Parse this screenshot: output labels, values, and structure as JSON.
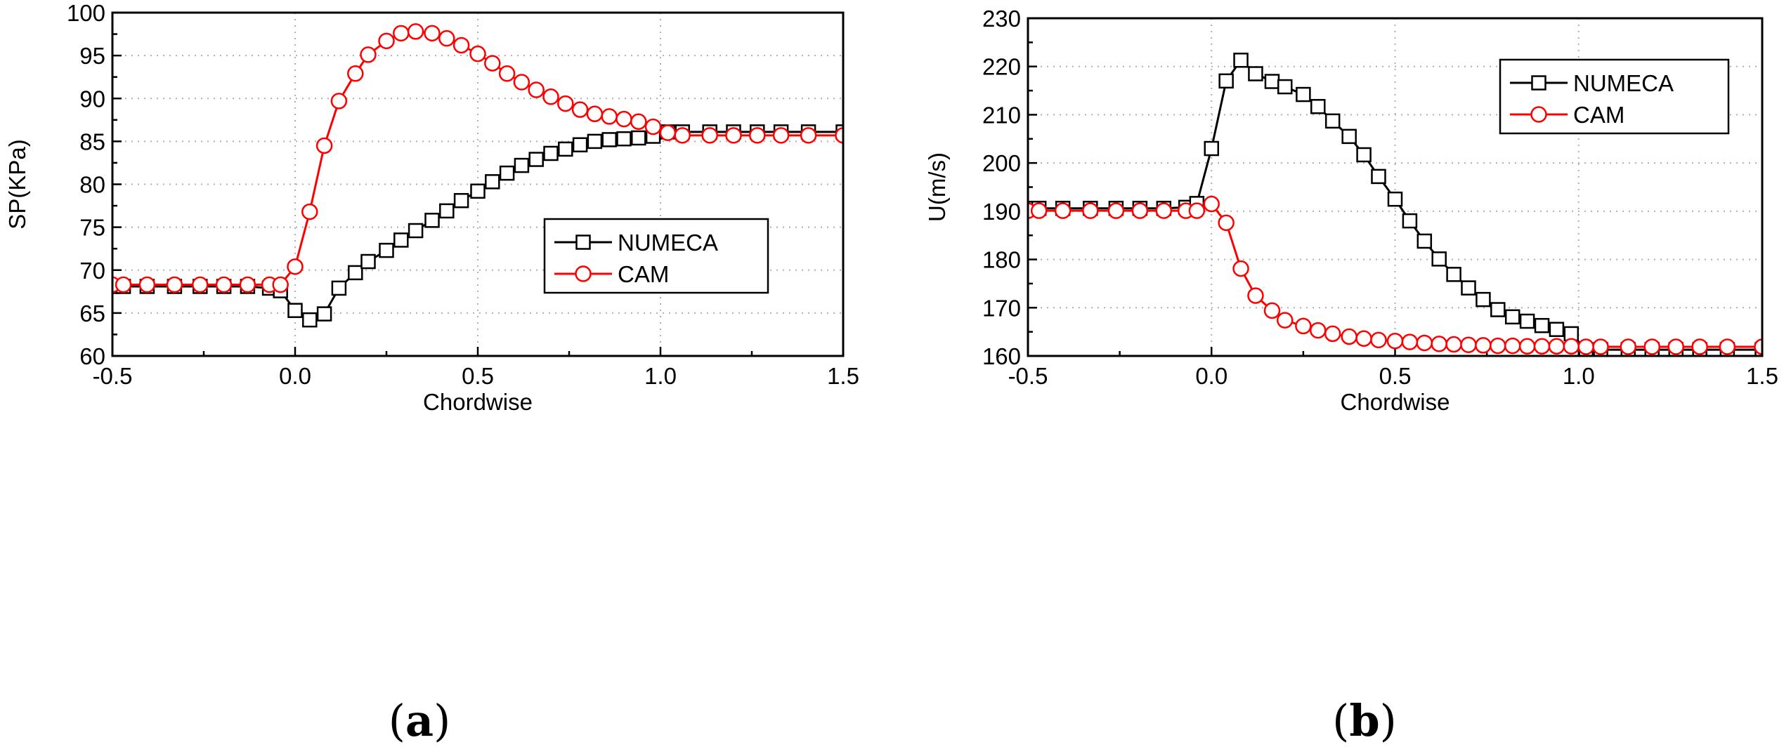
{
  "chart_data": [
    {
      "panel_label": "(a)",
      "type": "line",
      "title": "",
      "xlabel": "Chordwise",
      "ylabel": "SP(KPa)",
      "xlim": [
        -0.5,
        1.5
      ],
      "ylim": [
        60,
        100
      ],
      "xticks": [
        -0.5,
        0.0,
        0.5,
        1.0,
        1.5
      ],
      "xtick_labels": [
        "-0.5",
        "0.0",
        "0.5",
        "1.0",
        "1.5"
      ],
      "yticks": [
        60,
        65,
        70,
        75,
        80,
        85,
        90,
        95,
        100
      ],
      "ytick_labels": [
        "60",
        "65",
        "70",
        "75",
        "80",
        "85",
        "90",
        "95",
        "100"
      ],
      "grid": true,
      "legend_position": "middle-right",
      "series": [
        {
          "name": "NUMECA",
          "color": "#000000",
          "marker": "square",
          "x": [
            -0.5,
            -0.47,
            -0.405,
            -0.33,
            -0.26,
            -0.195,
            -0.13,
            -0.07,
            -0.04,
            0.0,
            0.04,
            0.08,
            0.12,
            0.165,
            0.2,
            0.25,
            0.29,
            0.33,
            0.375,
            0.415,
            0.455,
            0.5,
            0.54,
            0.58,
            0.62,
            0.66,
            0.7,
            0.74,
            0.78,
            0.82,
            0.86,
            0.9,
            0.94,
            0.98,
            1.02,
            1.06,
            1.135,
            1.2,
            1.265,
            1.33,
            1.405,
            1.5
          ],
          "y": [
            68.1,
            68.1,
            68.1,
            68.1,
            68.1,
            68.1,
            68.1,
            67.9,
            67.6,
            65.3,
            64.2,
            64.9,
            67.9,
            69.7,
            71.0,
            72.3,
            73.5,
            74.6,
            75.8,
            76.9,
            78.1,
            79.2,
            80.3,
            81.3,
            82.2,
            82.9,
            83.6,
            84.1,
            84.6,
            85.0,
            85.2,
            85.3,
            85.4,
            85.6,
            86.1,
            86.1,
            86.1,
            86.1,
            86.1,
            86.1,
            86.1,
            86.1
          ]
        },
        {
          "name": "CAM",
          "color": "#ff0000",
          "marker": "circle",
          "x": [
            -0.5,
            -0.47,
            -0.405,
            -0.33,
            -0.26,
            -0.195,
            -0.13,
            -0.07,
            -0.04,
            0.0,
            0.04,
            0.08,
            0.12,
            0.165,
            0.2,
            0.25,
            0.29,
            0.33,
            0.375,
            0.415,
            0.455,
            0.5,
            0.54,
            0.58,
            0.62,
            0.66,
            0.7,
            0.74,
            0.78,
            0.82,
            0.86,
            0.9,
            0.94,
            0.98,
            1.02,
            1.06,
            1.135,
            1.2,
            1.265,
            1.33,
            1.405,
            1.5
          ],
          "y": [
            68.3,
            68.3,
            68.3,
            68.3,
            68.3,
            68.3,
            68.3,
            68.3,
            68.3,
            70.4,
            76.8,
            84.5,
            89.7,
            92.9,
            95.1,
            96.7,
            97.6,
            97.8,
            97.6,
            97.0,
            96.2,
            95.2,
            94.1,
            92.9,
            91.9,
            91.0,
            90.2,
            89.4,
            88.7,
            88.2,
            87.9,
            87.6,
            87.3,
            86.7,
            86.0,
            85.7,
            85.7,
            85.7,
            85.7,
            85.7,
            85.7,
            85.7
          ]
        }
      ]
    },
    {
      "panel_label": "(b)",
      "type": "line",
      "title": "",
      "xlabel": "Chordwise",
      "ylabel": "U(m/s)",
      "xlim": [
        -0.5,
        1.5
      ],
      "ylim": [
        160,
        230
      ],
      "xticks": [
        -0.5,
        0.0,
        0.5,
        1.0,
        1.5
      ],
      "xtick_labels": [
        "-0.5",
        "0.0",
        "0.5",
        "1.0",
        "1.5"
      ],
      "yticks": [
        160,
        170,
        180,
        190,
        200,
        210,
        220,
        230
      ],
      "ytick_labels": [
        "160",
        "170",
        "180",
        "190",
        "200",
        "210",
        "220",
        "230"
      ],
      "grid": true,
      "legend_position": "top-right",
      "series": [
        {
          "name": "NUMECA",
          "color": "#000000",
          "marker": "square",
          "x": [
            -0.5,
            -0.47,
            -0.405,
            -0.33,
            -0.26,
            -0.195,
            -0.13,
            -0.07,
            -0.04,
            0.0,
            0.04,
            0.08,
            0.12,
            0.165,
            0.2,
            0.25,
            0.29,
            0.33,
            0.375,
            0.415,
            0.455,
            0.5,
            0.54,
            0.58,
            0.62,
            0.66,
            0.7,
            0.74,
            0.78,
            0.82,
            0.86,
            0.9,
            0.94,
            0.98,
            1.02,
            1.06,
            1.135,
            1.2,
            1.265,
            1.33,
            1.405,
            1.5
          ],
          "y": [
            190.6,
            190.6,
            190.6,
            190.6,
            190.6,
            190.6,
            190.6,
            190.8,
            191.6,
            203.0,
            217.0,
            221.3,
            218.5,
            216.9,
            215.8,
            214.2,
            211.7,
            208.7,
            205.5,
            201.7,
            197.2,
            192.5,
            188.0,
            183.8,
            180.1,
            176.9,
            174.1,
            171.7,
            169.6,
            168.1,
            167.2,
            166.3,
            165.5,
            164.6,
            161.3,
            161.3,
            161.3,
            161.3,
            161.3,
            161.3,
            161.3,
            161.3
          ]
        },
        {
          "name": "CAM",
          "color": "#ff0000",
          "marker": "circle",
          "x": [
            -0.5,
            -0.47,
            -0.405,
            -0.33,
            -0.26,
            -0.195,
            -0.13,
            -0.07,
            -0.04,
            0.0,
            0.04,
            0.08,
            0.12,
            0.165,
            0.2,
            0.25,
            0.29,
            0.33,
            0.375,
            0.415,
            0.455,
            0.5,
            0.54,
            0.58,
            0.62,
            0.66,
            0.7,
            0.74,
            0.78,
            0.82,
            0.86,
            0.9,
            0.94,
            0.98,
            1.02,
            1.06,
            1.135,
            1.2,
            1.265,
            1.33,
            1.405,
            1.5
          ],
          "y": [
            190.1,
            190.1,
            190.1,
            190.1,
            190.1,
            190.1,
            190.1,
            190.1,
            190.1,
            191.5,
            187.6,
            178.1,
            172.5,
            169.4,
            167.4,
            166.2,
            165.3,
            164.6,
            164.0,
            163.6,
            163.3,
            163.1,
            162.9,
            162.7,
            162.5,
            162.4,
            162.3,
            162.2,
            162.1,
            162.1,
            162.0,
            162.0,
            162.0,
            162.0,
            161.9,
            161.9,
            161.9,
            161.9,
            161.9,
            161.9,
            161.9,
            161.9
          ]
        }
      ]
    }
  ]
}
